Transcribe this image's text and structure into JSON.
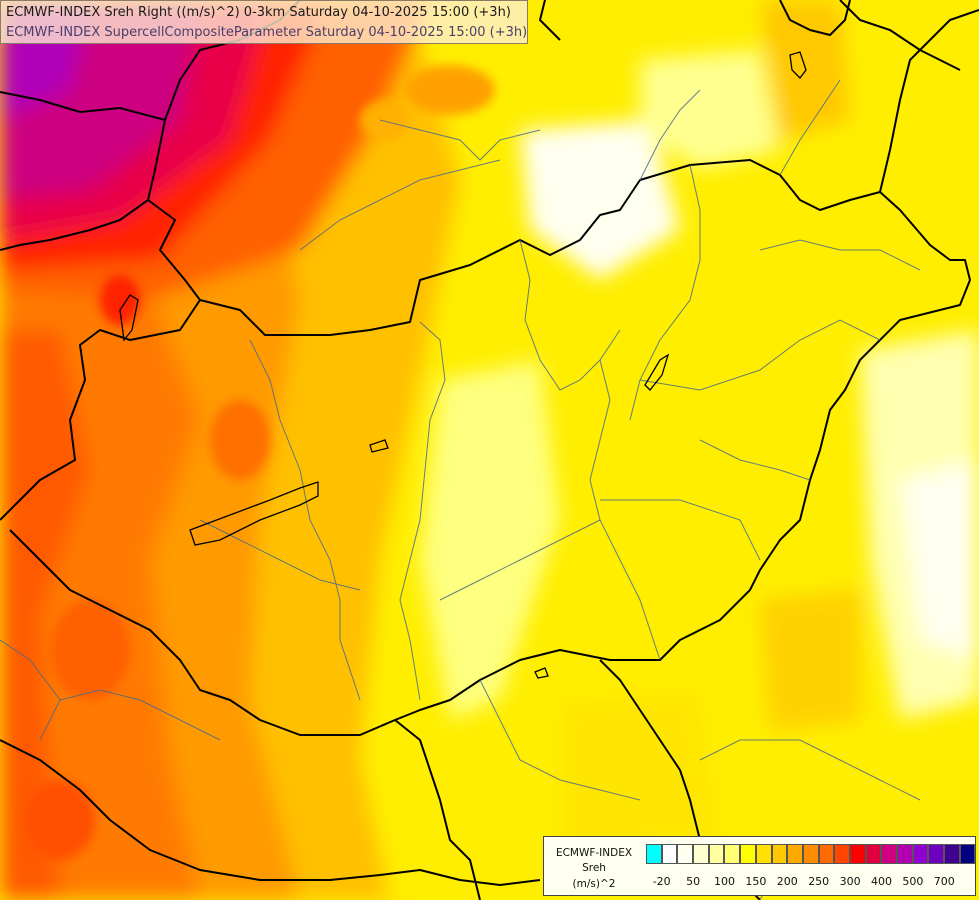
{
  "map": {
    "title_line1": "ECMWF-INDEX Sreh Right ((m/s)^2) 0-3km Saturday 04-10-2025 15:00 (+3h)",
    "title_line2": "ECMWF-INDEX SupercellCompositeParameter Saturday 04-10-2025 15:00 (+3h)"
  },
  "legend": {
    "line1": "ECMWF-INDEX",
    "line2": "Sreh",
    "line3": "(m/s)^2",
    "colors": [
      "#00ffff",
      "#ffffff",
      "#fffff0",
      "#ffffd0",
      "#ffffa0",
      "#ffff70",
      "#ffff00",
      "#ffe000",
      "#ffc800",
      "#ffaa00",
      "#ff8c00",
      "#ff6a00",
      "#ff4500",
      "#ff0000",
      "#e00040",
      "#d00080",
      "#b000b0",
      "#9000d0",
      "#7000c0",
      "#400090",
      "#000080"
    ],
    "ticks": [
      "-20",
      "50",
      "100",
      "150",
      "200",
      "250",
      "300",
      "400",
      "500",
      "700"
    ]
  }
}
